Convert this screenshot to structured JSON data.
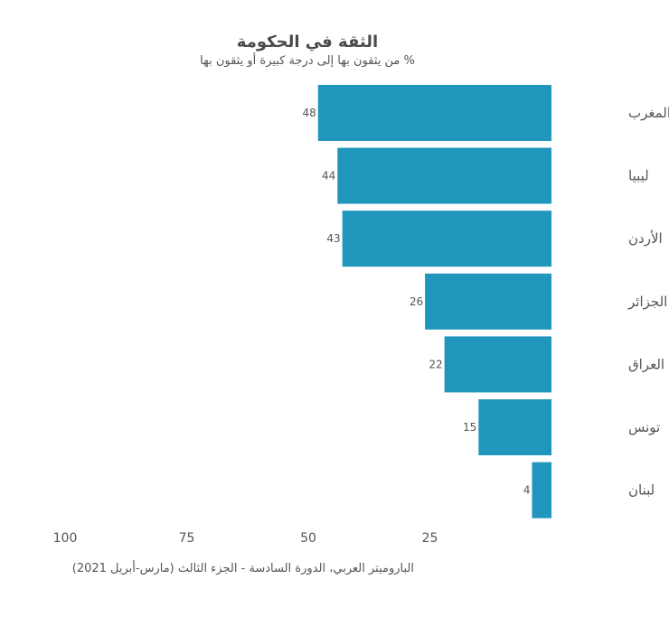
{
  "chart_data": {
    "type": "bar",
    "orientation": "horizontal",
    "direction": "rtl",
    "title": "الثقة في الحكومة",
    "subtitle": "% من يثقون بها إلى درجة كبيرة أو يثقون بها",
    "categories": [
      "المغرب",
      "ليبيا",
      "الأردن",
      "الجزائر",
      "العراق",
      "تونس",
      "لبنان"
    ],
    "values": [
      48,
      44,
      43,
      26,
      22,
      15,
      4
    ],
    "xticks": [
      100,
      75,
      50,
      25
    ],
    "xlim": [
      0,
      100
    ],
    "grid": false,
    "legend": "none",
    "bar_color": "#2196bd",
    "source": "الباروميتر العربي، الدورة السادسة - الجزء الثالث (مارس-أبريل 2021)"
  }
}
